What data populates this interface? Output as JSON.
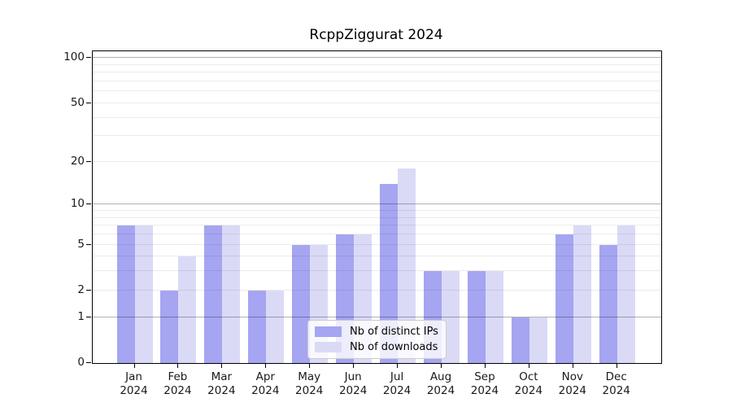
{
  "chart_data": {
    "type": "bar",
    "title": "RcppZiggurat 2024",
    "categories": [
      "Jan 2024",
      "Feb 2024",
      "Mar 2024",
      "Apr 2024",
      "May 2024",
      "Jun 2024",
      "Jul 2024",
      "Aug 2024",
      "Sep 2024",
      "Oct 2024",
      "Nov 2024",
      "Dec 2024"
    ],
    "series": [
      {
        "name": "Nb of distinct IPs",
        "color": "#a5a5f1",
        "values": [
          7,
          2,
          7,
          2,
          5,
          6,
          14,
          3,
          3,
          1,
          6,
          5
        ]
      },
      {
        "name": "Nb of downloads",
        "color": "#dadaf7",
        "values": [
          7,
          4,
          7,
          2,
          5,
          6,
          18,
          3,
          3,
          1,
          7,
          7
        ]
      }
    ],
    "y_axis": {
      "scale": "log1p",
      "ticks": [
        0,
        1,
        2,
        5,
        10,
        20,
        50,
        100
      ],
      "major_gridlines": [
        1,
        10,
        100
      ],
      "minor_gridlines": [
        2,
        3,
        4,
        5,
        6,
        7,
        8,
        9,
        20,
        30,
        40,
        50,
        60,
        70,
        80,
        90
      ],
      "max": 111
    },
    "legend": {
      "position": "lower-center-inside"
    },
    "grid": true,
    "colors": {
      "major_grid": "#b5b5b5",
      "minor_grid": "#ebebeb",
      "spine": "#000000",
      "background": "#ffffff"
    }
  }
}
